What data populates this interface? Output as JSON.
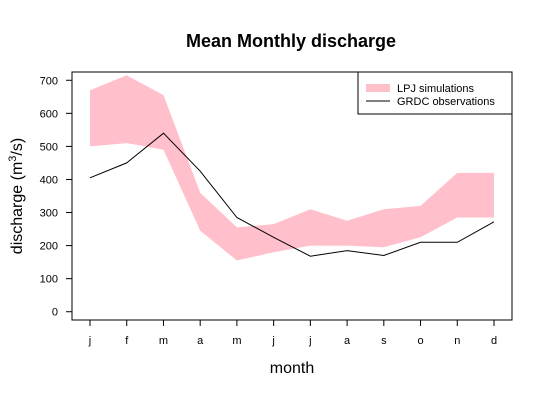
{
  "chart_data": {
    "type": "area",
    "title": "Mean Monthly discharge",
    "xlabel": "month",
    "ylabel_prefix": "discharge (m",
    "ylabel_sup": "3",
    "ylabel_suffix": "/s)",
    "categories": [
      "j",
      "f",
      "m",
      "a",
      "m",
      "j",
      "j",
      "a",
      "s",
      "o",
      "n",
      "d"
    ],
    "ylim": [
      -25,
      725
    ],
    "yticks": [
      0,
      100,
      200,
      300,
      400,
      500,
      600,
      700
    ],
    "grid": false,
    "legend_position": "top-right",
    "band": {
      "name": "LPJ simulations",
      "color": "#ffc0cb",
      "lower": [
        500,
        510,
        490,
        245,
        155,
        180,
        200,
        200,
        195,
        225,
        285,
        285
      ],
      "upper": [
        670,
        715,
        655,
        360,
        255,
        265,
        310,
        275,
        310,
        320,
        420,
        420
      ]
    },
    "series": [
      {
        "name": "GRDC observations",
        "color": "#000000",
        "values": [
          405,
          450,
          540,
          425,
          285,
          225,
          168,
          185,
          170,
          210,
          210,
          272
        ]
      }
    ]
  }
}
